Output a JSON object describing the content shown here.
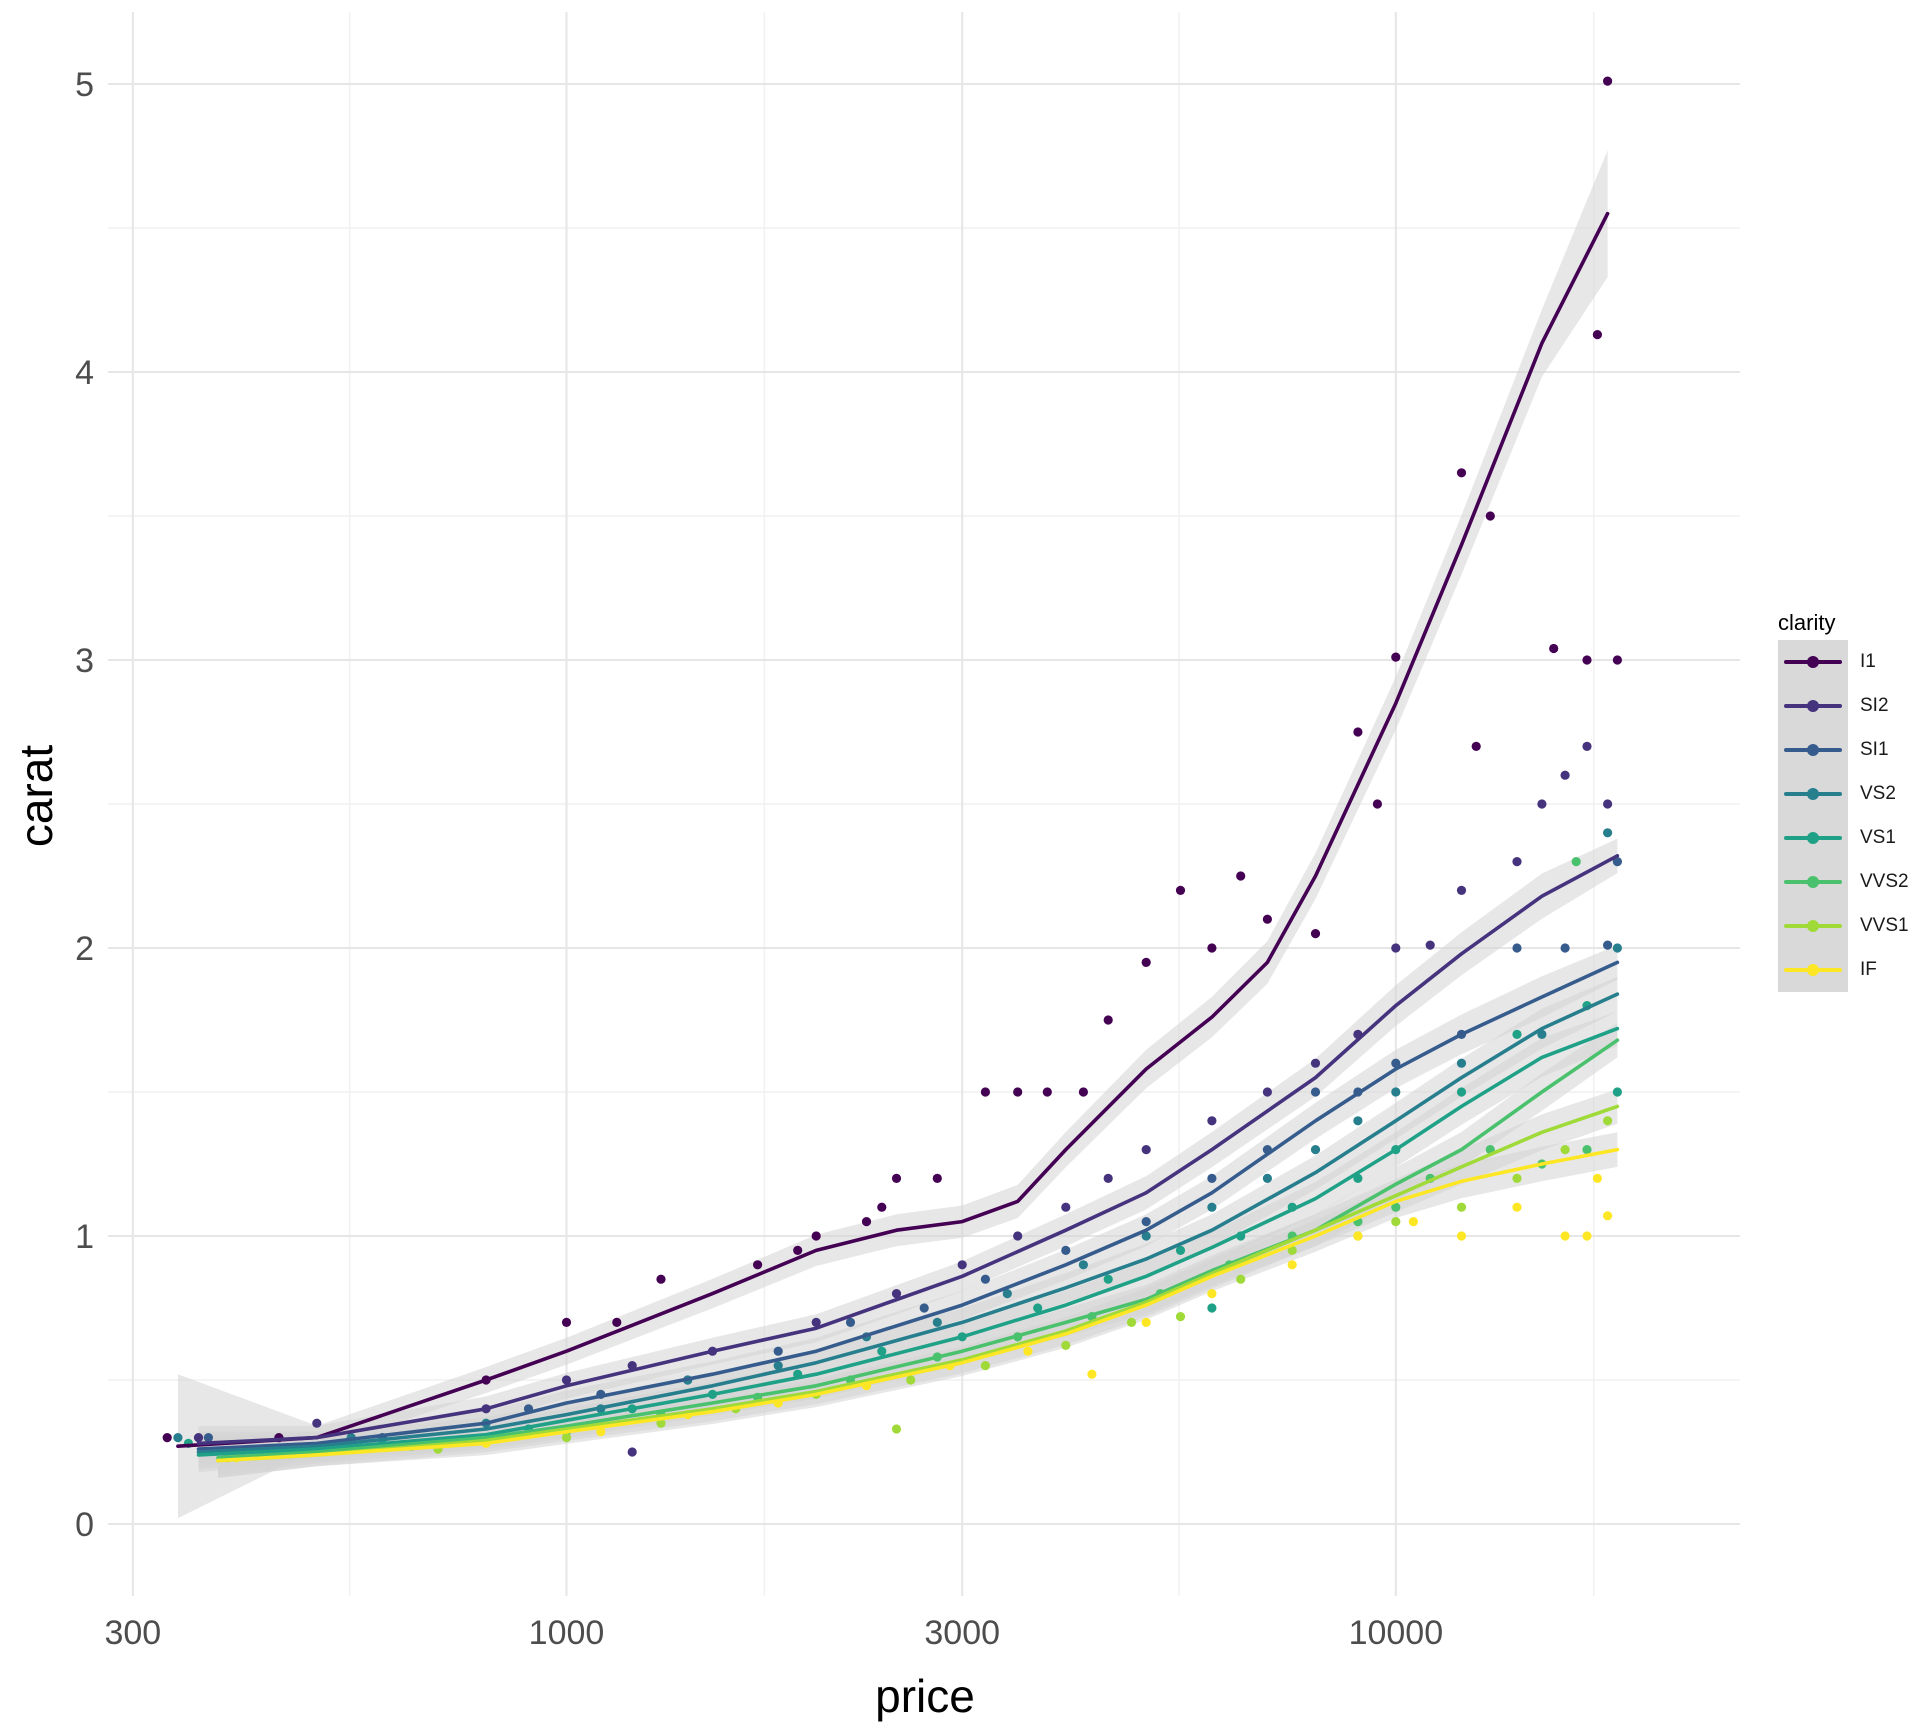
{
  "chart_data": {
    "type": "scatter",
    "title": "",
    "xlabel": "price",
    "ylabel": "carat",
    "x_scale": "log10",
    "xlim": [
      280,
      26000
    ],
    "ylim": [
      -0.25,
      5.25
    ],
    "x_ticks": [
      300,
      1000,
      3000,
      10000
    ],
    "x_tick_labels": [
      "300",
      "1000",
      "3000",
      "10000"
    ],
    "y_ticks": [
      0,
      1,
      2,
      3,
      4,
      5
    ],
    "y_tick_labels": [
      "0",
      "1",
      "2",
      "3",
      "4",
      "5"
    ],
    "grid": true,
    "legend": {
      "title": "clarity",
      "position": "right"
    },
    "smooth_band_color": "#d3d3d3",
    "series": [
      {
        "name": "I1",
        "color": "#440154",
        "smooth": {
          "x": [
            340,
            500,
            800,
            1000,
            1500,
            2000,
            2500,
            3000,
            3500,
            4000,
            5000,
            6000,
            7000,
            8000,
            10000,
            12000,
            15000,
            18000
          ],
          "y": [
            0.27,
            0.3,
            0.5,
            0.6,
            0.8,
            0.95,
            1.02,
            1.05,
            1.12,
            1.3,
            1.58,
            1.76,
            1.95,
            2.25,
            2.85,
            3.4,
            4.1,
            4.55
          ]
        },
        "points": [
          [
            330,
            0.3
          ],
          [
            450,
            0.3
          ],
          [
            800,
            0.5
          ],
          [
            1000,
            0.7
          ],
          [
            1150,
            0.7
          ],
          [
            1300,
            0.85
          ],
          [
            1700,
            0.9
          ],
          [
            1900,
            0.95
          ],
          [
            2000,
            1.0
          ],
          [
            2300,
            1.05
          ],
          [
            2400,
            1.1
          ],
          [
            2500,
            1.2
          ],
          [
            2800,
            1.2
          ],
          [
            3200,
            1.5
          ],
          [
            3500,
            1.5
          ],
          [
            3800,
            1.5
          ],
          [
            4200,
            1.5
          ],
          [
            4500,
            1.75
          ],
          [
            5000,
            1.95
          ],
          [
            5500,
            2.2
          ],
          [
            6000,
            2.0
          ],
          [
            6500,
            2.25
          ],
          [
            7000,
            2.1
          ],
          [
            8000,
            2.05
          ],
          [
            9000,
            2.75
          ],
          [
            10000,
            3.01
          ],
          [
            9500,
            2.5
          ],
          [
            12000,
            3.65
          ],
          [
            12500,
            2.7
          ],
          [
            13000,
            3.5
          ],
          [
            17500,
            4.13
          ],
          [
            18000,
            5.01
          ],
          [
            15500,
            3.04
          ],
          [
            17000,
            3.0
          ],
          [
            18500,
            3.0
          ]
        ]
      },
      {
        "name": "SI2",
        "color": "#46337e",
        "smooth": {
          "x": [
            360,
            500,
            800,
            1000,
            1500,
            2000,
            3000,
            4000,
            5000,
            6000,
            8000,
            10000,
            12000,
            15000,
            18500
          ],
          "y": [
            0.28,
            0.3,
            0.4,
            0.48,
            0.6,
            0.68,
            0.86,
            1.02,
            1.15,
            1.3,
            1.55,
            1.8,
            1.98,
            2.18,
            2.32
          ]
        },
        "points": [
          [
            360,
            0.3
          ],
          [
            500,
            0.35
          ],
          [
            800,
            0.4
          ],
          [
            1000,
            0.5
          ],
          [
            1200,
            0.55
          ],
          [
            1500,
            0.6
          ],
          [
            2000,
            0.7
          ],
          [
            2500,
            0.8
          ],
          [
            3000,
            0.9
          ],
          [
            3500,
            1.0
          ],
          [
            4000,
            1.1
          ],
          [
            4500,
            1.2
          ],
          [
            5000,
            1.3
          ],
          [
            6000,
            1.4
          ],
          [
            7000,
            1.5
          ],
          [
            8000,
            1.6
          ],
          [
            9000,
            1.7
          ],
          [
            10000,
            2.0
          ],
          [
            11000,
            2.01
          ],
          [
            12000,
            2.2
          ],
          [
            14000,
            2.3
          ],
          [
            15000,
            2.5
          ],
          [
            16000,
            2.6
          ],
          [
            17000,
            2.7
          ],
          [
            18000,
            2.5
          ],
          [
            1200,
            0.25
          ]
        ]
      },
      {
        "name": "SI1",
        "color": "#365c8d",
        "smooth": {
          "x": [
            360,
            500,
            800,
            1000,
            1500,
            2000,
            3000,
            4000,
            5000,
            6000,
            8000,
            10000,
            12000,
            15000,
            18500
          ],
          "y": [
            0.26,
            0.28,
            0.35,
            0.42,
            0.52,
            0.6,
            0.76,
            0.9,
            1.02,
            1.15,
            1.4,
            1.58,
            1.7,
            1.83,
            1.95
          ]
        },
        "points": [
          [
            370,
            0.3
          ],
          [
            600,
            0.3
          ],
          [
            900,
            0.4
          ],
          [
            1100,
            0.45
          ],
          [
            1400,
            0.5
          ],
          [
            1800,
            0.6
          ],
          [
            2200,
            0.7
          ],
          [
            2700,
            0.75
          ],
          [
            3200,
            0.85
          ],
          [
            4000,
            0.95
          ],
          [
            5000,
            1.05
          ],
          [
            6000,
            1.2
          ],
          [
            7000,
            1.3
          ],
          [
            8000,
            1.5
          ],
          [
            9000,
            1.5
          ],
          [
            10000,
            1.6
          ],
          [
            12000,
            1.7
          ],
          [
            14000,
            2.0
          ],
          [
            16000,
            2.0
          ],
          [
            18000,
            2.01
          ],
          [
            18500,
            2.3
          ]
        ]
      },
      {
        "name": "VS2",
        "color": "#277f8e",
        "smooth": {
          "x": [
            360,
            500,
            800,
            1000,
            1500,
            2000,
            3000,
            4000,
            5000,
            6000,
            8000,
            10000,
            12000,
            15000,
            18500
          ],
          "y": [
            0.25,
            0.27,
            0.33,
            0.38,
            0.48,
            0.56,
            0.7,
            0.82,
            0.92,
            1.02,
            1.22,
            1.4,
            1.55,
            1.72,
            1.84
          ]
        },
        "points": [
          [
            340,
            0.3
          ],
          [
            550,
            0.3
          ],
          [
            800,
            0.35
          ],
          [
            1100,
            0.4
          ],
          [
            1400,
            0.5
          ],
          [
            1800,
            0.55
          ],
          [
            2300,
            0.65
          ],
          [
            2800,
            0.7
          ],
          [
            3400,
            0.8
          ],
          [
            4200,
            0.9
          ],
          [
            5000,
            1.0
          ],
          [
            6000,
            1.1
          ],
          [
            7000,
            1.2
          ],
          [
            8000,
            1.3
          ],
          [
            9000,
            1.4
          ],
          [
            10000,
            1.5
          ],
          [
            12000,
            1.6
          ],
          [
            15000,
            1.7
          ],
          [
            18000,
            2.4
          ],
          [
            18500,
            2.0
          ]
        ]
      },
      {
        "name": "VS1",
        "color": "#1fa187",
        "smooth": {
          "x": [
            360,
            500,
            800,
            1000,
            1500,
            2000,
            3000,
            4000,
            5000,
            6000,
            8000,
            10000,
            12000,
            15000,
            18500
          ],
          "y": [
            0.24,
            0.26,
            0.31,
            0.36,
            0.45,
            0.52,
            0.65,
            0.76,
            0.86,
            0.96,
            1.13,
            1.3,
            1.45,
            1.62,
            1.72
          ]
        },
        "points": [
          [
            350,
            0.28
          ],
          [
            600,
            0.28
          ],
          [
            900,
            0.33
          ],
          [
            1200,
            0.4
          ],
          [
            1500,
            0.45
          ],
          [
            1900,
            0.52
          ],
          [
            2400,
            0.6
          ],
          [
            3000,
            0.65
          ],
          [
            3700,
            0.75
          ],
          [
            4500,
            0.85
          ],
          [
            5500,
            0.95
          ],
          [
            6500,
            1.0
          ],
          [
            7500,
            1.1
          ],
          [
            9000,
            1.2
          ],
          [
            10000,
            1.3
          ],
          [
            12000,
            1.5
          ],
          [
            14000,
            1.7
          ],
          [
            17000,
            1.8
          ],
          [
            18500,
            1.5
          ],
          [
            6000,
            0.75
          ]
        ]
      },
      {
        "name": "VVS2",
        "color": "#4ac16d",
        "smooth": {
          "x": [
            380,
            500,
            800,
            1000,
            1500,
            2000,
            3000,
            4000,
            5000,
            6000,
            8000,
            10000,
            12000,
            15000,
            18500
          ],
          "y": [
            0.23,
            0.25,
            0.3,
            0.34,
            0.42,
            0.48,
            0.6,
            0.7,
            0.78,
            0.88,
            1.02,
            1.18,
            1.3,
            1.5,
            1.68
          ]
        },
        "points": [
          [
            400,
            0.25
          ],
          [
            650,
            0.27
          ],
          [
            1000,
            0.32
          ],
          [
            1300,
            0.38
          ],
          [
            1700,
            0.44
          ],
          [
            2200,
            0.5
          ],
          [
            2800,
            0.58
          ],
          [
            3500,
            0.65
          ],
          [
            4300,
            0.72
          ],
          [
            5200,
            0.8
          ],
          [
            6300,
            0.9
          ],
          [
            7500,
            1.0
          ],
          [
            9000,
            1.05
          ],
          [
            10000,
            1.1
          ],
          [
            11000,
            1.2
          ],
          [
            13000,
            1.3
          ],
          [
            15000,
            1.25
          ],
          [
            17000,
            1.3
          ],
          [
            16500,
            2.3
          ]
        ]
      },
      {
        "name": "VVS1",
        "color": "#a0da39",
        "smooth": {
          "x": [
            380,
            500,
            800,
            1000,
            1500,
            2000,
            3000,
            4000,
            5000,
            6000,
            8000,
            10000,
            12000,
            15000,
            18500
          ],
          "y": [
            0.22,
            0.24,
            0.29,
            0.33,
            0.4,
            0.46,
            0.57,
            0.67,
            0.77,
            0.87,
            1.02,
            1.14,
            1.24,
            1.36,
            1.45
          ]
        },
        "points": [
          [
            390,
            0.23
          ],
          [
            700,
            0.26
          ],
          [
            1000,
            0.3
          ],
          [
            1300,
            0.35
          ],
          [
            1600,
            0.4
          ],
          [
            2000,
            0.45
          ],
          [
            2500,
            0.33
          ],
          [
            2600,
            0.5
          ],
          [
            3200,
            0.55
          ],
          [
            4000,
            0.62
          ],
          [
            4800,
            0.7
          ],
          [
            5500,
            0.72
          ],
          [
            6500,
            0.85
          ],
          [
            7500,
            0.95
          ],
          [
            9000,
            1.0
          ],
          [
            10000,
            1.05
          ],
          [
            12000,
            1.1
          ],
          [
            14000,
            1.2
          ],
          [
            16000,
            1.3
          ],
          [
            18000,
            1.4
          ]
        ]
      },
      {
        "name": "IF",
        "color": "#fde725",
        "smooth": {
          "x": [
            380,
            500,
            800,
            1000,
            1500,
            2000,
            3000,
            4000,
            5000,
            6000,
            8000,
            10000,
            12000,
            15000,
            18500
          ],
          "y": [
            0.22,
            0.24,
            0.28,
            0.32,
            0.39,
            0.45,
            0.56,
            0.66,
            0.76,
            0.86,
            1.0,
            1.12,
            1.19,
            1.25,
            1.3
          ]
        },
        "points": [
          [
            400,
            0.23
          ],
          [
            800,
            0.28
          ],
          [
            1100,
            0.32
          ],
          [
            1400,
            0.38
          ],
          [
            1800,
            0.42
          ],
          [
            2300,
            0.48
          ],
          [
            2900,
            0.55
          ],
          [
            3600,
            0.6
          ],
          [
            4300,
            0.52
          ],
          [
            5000,
            0.7
          ],
          [
            6000,
            0.8
          ],
          [
            7500,
            0.9
          ],
          [
            9000,
            1.0
          ],
          [
            10500,
            1.05
          ],
          [
            12000,
            1.0
          ],
          [
            14000,
            1.1
          ],
          [
            16000,
            1.0
          ],
          [
            17000,
            1.0
          ],
          [
            18000,
            1.07
          ],
          [
            17500,
            1.2
          ]
        ]
      }
    ]
  }
}
